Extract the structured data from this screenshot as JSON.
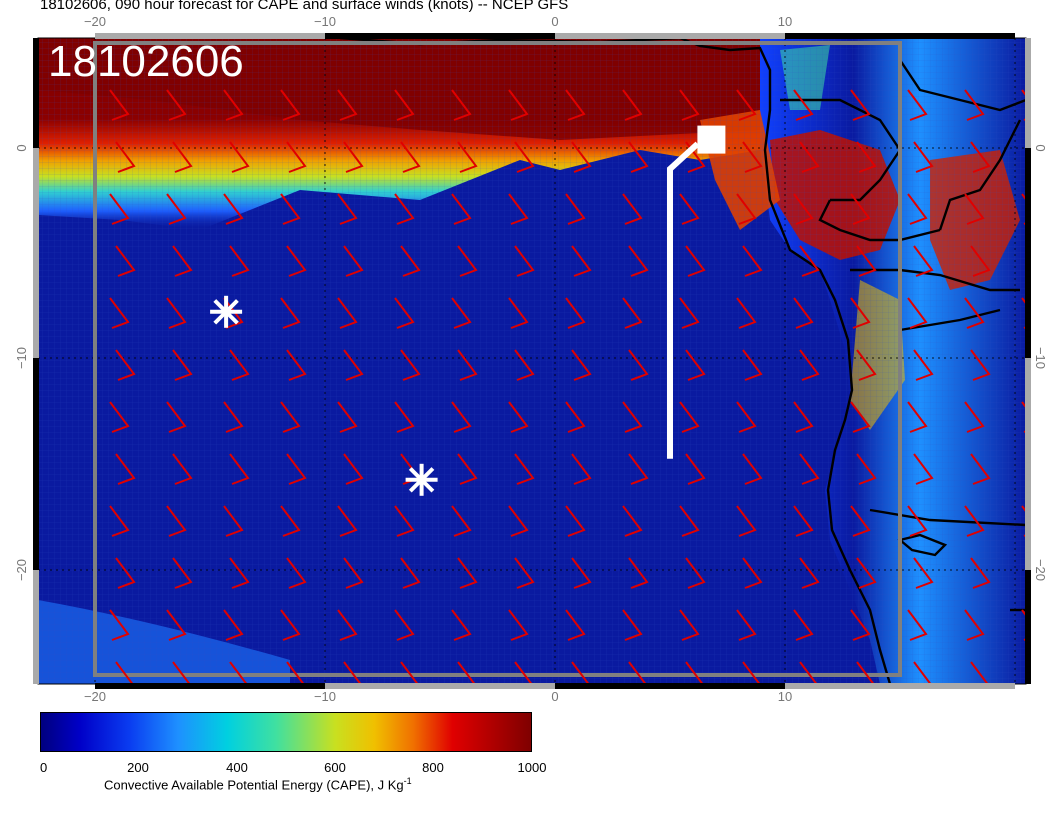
{
  "title": "18102606, 090 hour forecast for CAPE and surface winds (knots) -- NCEP GFS",
  "datestamp": "18102606",
  "colorbar": {
    "label": "Convective Available Potential Energy (CAPE), J Kg",
    "label_superscript": "-1",
    "ticks": [
      "0",
      "200",
      "400",
      "600",
      "800",
      "1000"
    ],
    "range": [
      0,
      1000
    ]
  },
  "axes": {
    "lon_ticks": [
      "−20",
      "−10",
      "0",
      "10"
    ],
    "lat_ticks": [
      "0",
      "−10",
      "−20"
    ]
  },
  "markers": {
    "stars": [
      {
        "lon": -14.3,
        "lat": -7.8
      },
      {
        "lon": -5.8,
        "lat": -15.8
      }
    ],
    "track": [
      {
        "lon": 5.0,
        "lat": -14.8
      },
      {
        "lon": 5.0,
        "lat": -1.0
      },
      {
        "lon": 6.2,
        "lat": 0.2
      }
    ],
    "endpoint": {
      "lon": 6.8,
      "lat": 0.4
    }
  },
  "wind_barbs": {
    "direction": "southeasterly",
    "color": "#e00000"
  },
  "colors": {
    "ocean": "#0a1aa0",
    "grid": "#8fa0d8",
    "coast": "#000000",
    "barb": "#e00000"
  }
}
